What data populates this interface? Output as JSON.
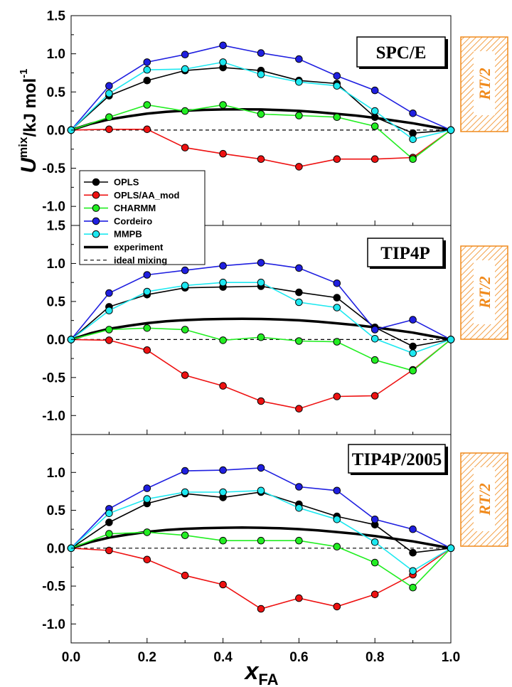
{
  "chart_data": {
    "type": "line",
    "ylabel_main": "U",
    "ylabel_sup": "mix",
    "ylabel_unit": "/kJ mol",
    "ylabel_unit_sup": "-1",
    "xlabel_main": "x",
    "xlabel_sub": "FA",
    "xlim": [
      0.0,
      1.0
    ],
    "ylim": [
      -1.25,
      1.5
    ],
    "x_ticks": [
      "0.0",
      "0.2",
      "0.4",
      "0.6",
      "0.8",
      "1.0"
    ],
    "y_ticks": [
      "-1.0",
      "-0.5",
      "0.0",
      "0.5",
      "1.0",
      "1.5"
    ],
    "y_ticks_bottom_panel": [
      "-1.0",
      "-0.5",
      "0.0",
      "0.5",
      "1.0"
    ],
    "x": [
      0.0,
      0.1,
      0.2,
      0.3,
      0.4,
      0.5,
      0.6,
      0.7,
      0.8,
      0.9,
      1.0
    ],
    "rt_label": "RT/2",
    "rt_value": 1.24,
    "colors": {
      "OPLS": "#000000",
      "OPLS/AA_mod": "#ee1111",
      "CHARMM": "#22ee22",
      "Cordeiro": "#1f1fe0",
      "MMPB": "#1de8f0",
      "experiment": "#000000",
      "rt_hatch": "#f08a1c"
    },
    "legend": [
      {
        "label": "OPLS",
        "style": "marker"
      },
      {
        "label": "OPLS/AA_mod",
        "style": "marker"
      },
      {
        "label": "CHARMM",
        "style": "marker"
      },
      {
        "label": "Cordeiro",
        "style": "marker"
      },
      {
        "label": "MMPB",
        "style": "marker"
      },
      {
        "label": "experiment",
        "style": "thick"
      },
      {
        "label": "ideal mixing",
        "style": "dashed"
      }
    ],
    "experiment_curve": {
      "x": [
        0.0,
        0.05,
        0.1,
        0.15,
        0.2,
        0.25,
        0.3,
        0.35,
        0.4,
        0.45,
        0.5,
        0.55,
        0.6,
        0.65,
        0.7,
        0.75,
        0.8,
        0.85,
        0.9,
        0.95,
        1.0
      ],
      "y": [
        0.0,
        0.08,
        0.14,
        0.18,
        0.215,
        0.24,
        0.255,
        0.265,
        0.27,
        0.272,
        0.27,
        0.263,
        0.252,
        0.235,
        0.213,
        0.19,
        0.16,
        0.125,
        0.09,
        0.045,
        0.0
      ]
    },
    "panels": [
      {
        "label": "SPC/E",
        "series": [
          {
            "name": "OPLS",
            "values": [
              0.0,
              0.45,
              0.65,
              0.78,
              0.82,
              0.78,
              0.65,
              0.61,
              0.17,
              -0.04,
              0.0
            ]
          },
          {
            "name": "OPLS/AA_mod",
            "values": [
              0.0,
              0.01,
              0.01,
              -0.23,
              -0.31,
              -0.38,
              -0.48,
              -0.38,
              -0.38,
              -0.36,
              0.0
            ]
          },
          {
            "name": "CHARMM",
            "values": [
              0.0,
              0.17,
              0.33,
              0.25,
              0.33,
              0.21,
              0.19,
              0.17,
              0.05,
              -0.38,
              0.0
            ]
          },
          {
            "name": "Cordeiro",
            "values": [
              0.0,
              0.58,
              0.89,
              0.99,
              1.11,
              1.01,
              0.93,
              0.71,
              0.52,
              0.22,
              0.0
            ]
          },
          {
            "name": "MMPB",
            "values": [
              0.0,
              0.48,
              0.79,
              0.8,
              0.89,
              0.73,
              0.63,
              0.58,
              0.25,
              -0.12,
              0.0
            ]
          }
        ]
      },
      {
        "label": "TIP4P",
        "series": [
          {
            "name": "OPLS",
            "values": [
              0.0,
              0.43,
              0.59,
              0.68,
              0.69,
              0.7,
              0.62,
              0.55,
              0.16,
              -0.09,
              0.0
            ]
          },
          {
            "name": "OPLS/AA_mod",
            "values": [
              0.0,
              -0.01,
              -0.14,
              -0.47,
              -0.61,
              -0.81,
              -0.91,
              -0.75,
              -0.74,
              -0.4,
              0.0
            ]
          },
          {
            "name": "CHARMM",
            "values": [
              0.0,
              0.13,
              0.15,
              0.13,
              -0.01,
              0.03,
              -0.02,
              -0.03,
              -0.27,
              -0.41,
              0.0
            ]
          },
          {
            "name": "Cordeiro",
            "values": [
              0.0,
              0.61,
              0.85,
              0.91,
              0.97,
              1.01,
              0.94,
              0.74,
              0.13,
              0.26,
              0.0
            ]
          },
          {
            "name": "MMPB",
            "values": [
              0.0,
              0.38,
              0.63,
              0.71,
              0.75,
              0.75,
              0.49,
              0.42,
              0.01,
              -0.18,
              0.0
            ]
          }
        ]
      },
      {
        "label": "TIP4P/2005",
        "series": [
          {
            "name": "OPLS",
            "values": [
              0.0,
              0.34,
              0.59,
              0.72,
              0.67,
              0.74,
              0.58,
              0.42,
              0.31,
              -0.06,
              0.0
            ]
          },
          {
            "name": "OPLS/AA_mod",
            "values": [
              0.0,
              -0.03,
              -0.15,
              -0.36,
              -0.48,
              -0.8,
              -0.66,
              -0.77,
              -0.61,
              -0.35,
              0.0
            ]
          },
          {
            "name": "CHARMM",
            "values": [
              0.0,
              0.19,
              0.21,
              0.17,
              0.1,
              0.1,
              0.1,
              0.02,
              -0.19,
              -0.52,
              0.0
            ]
          },
          {
            "name": "Cordeiro",
            "values": [
              0.0,
              0.52,
              0.79,
              1.02,
              1.03,
              1.06,
              0.81,
              0.76,
              0.38,
              0.25,
              0.0
            ]
          },
          {
            "name": "MMPB",
            "values": [
              0.0,
              0.46,
              0.65,
              0.74,
              0.74,
              0.76,
              0.53,
              0.38,
              0.08,
              -0.3,
              0.0
            ]
          }
        ]
      }
    ]
  }
}
